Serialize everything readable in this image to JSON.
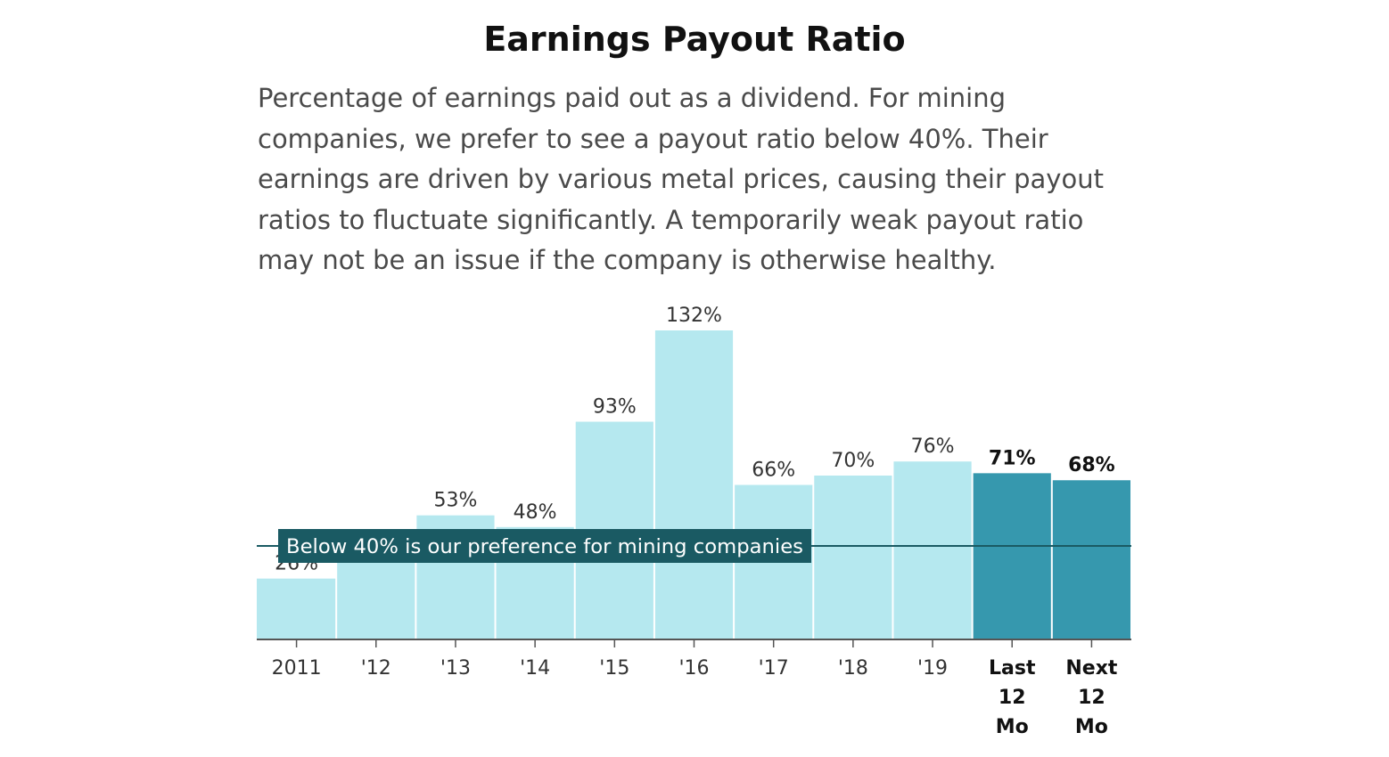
{
  "header": {
    "title": "Earnings Payout Ratio",
    "description": "Percentage of earnings paid out as a dividend. For mining companies, we prefer to see a payout ratio below 40%. Their earnings are driven by various metal prices, causing their payout ratios to fluctuate significantly. A temporarily weak payout ratio may not be an issue if the company is otherwise healthy."
  },
  "chart_data": {
    "type": "bar",
    "title": "Earnings Payout Ratio",
    "xlabel": "",
    "ylabel": "",
    "categories": [
      "2011",
      "'12",
      "'13",
      "'14",
      "'15",
      "'16",
      "'17",
      "'18",
      "'19",
      "Last 12 Mo",
      "Next 12 Mo"
    ],
    "category_label_lines": [
      [
        "2011"
      ],
      [
        "'12"
      ],
      [
        "'13"
      ],
      [
        "'14"
      ],
      [
        "'15"
      ],
      [
        "'16"
      ],
      [
        "'17"
      ],
      [
        "'18"
      ],
      [
        "'19"
      ],
      [
        "Last",
        "12",
        "Mo"
      ],
      [
        "Next",
        "12",
        "Mo"
      ]
    ],
    "values": [
      26,
      38,
      53,
      48,
      93,
      132,
      66,
      70,
      76,
      71,
      68
    ],
    "value_labels": [
      "26%",
      "",
      "53%",
      "48%",
      "93%",
      "132%",
      "66%",
      "70%",
      "76%",
      "71%",
      "68%"
    ],
    "highlighted": [
      false,
      false,
      false,
      false,
      false,
      false,
      false,
      false,
      false,
      true,
      true
    ],
    "colors": {
      "bar": "#b5e8ef",
      "highlight": "#3698ae",
      "reference": "#1a5a63",
      "axis": "#555555"
    },
    "reference_line": {
      "value": 40,
      "label": "Below 40% is our preference for mining companies"
    },
    "ylim": [
      0,
      132
    ],
    "grid": false,
    "legend": "none"
  }
}
